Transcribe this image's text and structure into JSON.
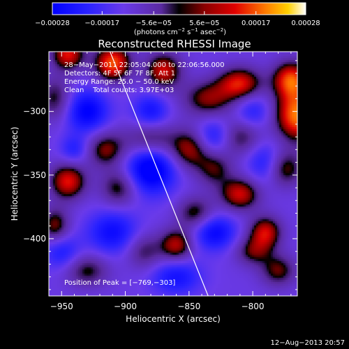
{
  "chart_data": {
    "type": "heatmap",
    "title": "Reconstructed RHESSI Image",
    "xlabel": "Heliocentric X (arcsec)",
    "ylabel": "Heliocentric Y (arcsec)",
    "xlim": [
      -960,
      -765
    ],
    "ylim": [
      -445,
      -253
    ],
    "x_ticks": [
      -950,
      -900,
      -850,
      -800
    ],
    "x_tick_labels": [
      "−950",
      "−900",
      "−850",
      "−800"
    ],
    "y_ticks": [
      -300,
      -350,
      -400
    ],
    "y_tick_labels": [
      "−300",
      "−350",
      "−400"
    ],
    "colorbar": {
      "range": [
        -0.00028,
        0.00028
      ],
      "tick_values": [
        -0.00028,
        -0.00017,
        -5.6e-05,
        5.6e-05,
        0.00017,
        0.00028
      ],
      "tick_labels": [
        "−0.00028",
        "−0.00017",
        "−5.6e−05",
        "5.6e−05",
        "0.00017",
        "0.00028"
      ],
      "label_base": "(photons cm",
      "label_exp1": "−2",
      "label_mid": " s",
      "label_exp2": "−1",
      "label_mid2": " asec",
      "label_exp3": "−2",
      "label_end": ")"
    },
    "annotations": [
      "28−May−2011 22:05:04.000 to 22:06:56.000",
      "Detectors: 4F 5F 6F 7F 8F, Att 1",
      "Energy Range: 25.0 − 50.0 keV",
      "Clean    Total counts: 3.97E+03"
    ],
    "peak_label": "Position of Peak = [−769,−303]",
    "limb_line": [
      [
        -912,
        -253
      ],
      [
        -835,
        -445
      ]
    ],
    "blobs": [
      [
        -765,
        -303,
        1.0,
        12,
        14
      ],
      [
        -770,
        -275,
        0.85,
        10,
        10
      ],
      [
        -775,
        -345,
        0.55,
        10,
        10
      ],
      [
        -790,
        -395,
        0.7,
        9,
        9
      ],
      [
        -780,
        -425,
        0.5,
        10,
        9
      ],
      [
        -810,
        -278,
        0.75,
        12,
        9
      ],
      [
        -835,
        -290,
        0.55,
        14,
        10
      ],
      [
        -810,
        -320,
        0.45,
        12,
        10
      ],
      [
        -850,
        -330,
        0.6,
        11,
        11
      ],
      [
        -880,
        -322,
        0.5,
        14,
        10
      ],
      [
        -915,
        -330,
        0.55,
        11,
        10
      ],
      [
        -945,
        -255,
        0.75,
        9,
        9
      ],
      [
        -910,
        -262,
        0.9,
        10,
        10
      ],
      [
        -870,
        -268,
        0.7,
        10,
        10
      ],
      [
        -955,
        -290,
        0.45,
        9,
        12
      ],
      [
        -945,
        -355,
        0.75,
        10,
        10
      ],
      [
        -905,
        -360,
        0.5,
        10,
        10
      ],
      [
        -955,
        -390,
        0.55,
        8,
        10
      ],
      [
        -930,
        -425,
        0.45,
        12,
        9
      ],
      [
        -830,
        -345,
        0.45,
        10,
        10
      ],
      [
        -810,
        -365,
        0.7,
        11,
        9
      ],
      [
        -845,
        -380,
        0.5,
        10,
        9
      ],
      [
        -860,
        -405,
        0.65,
        9,
        9
      ],
      [
        -885,
        -410,
        0.4,
        10,
        10
      ],
      [
        -800,
        -410,
        0.45,
        10,
        8
      ],
      [
        -930,
        -300,
        -0.6,
        12,
        12
      ],
      [
        -880,
        -345,
        -0.75,
        14,
        14
      ],
      [
        -910,
        -395,
        -0.5,
        14,
        12
      ],
      [
        -860,
        -430,
        -0.45,
        14,
        10
      ],
      [
        -830,
        -395,
        -0.55,
        12,
        10
      ],
      [
        -830,
        -320,
        -0.45,
        10,
        10
      ],
      [
        -790,
        -340,
        -0.4,
        10,
        12
      ],
      [
        -880,
        -300,
        -0.45,
        10,
        10
      ],
      [
        -950,
        -410,
        -0.4,
        10,
        10
      ],
      [
        -800,
        -300,
        -0.35,
        10,
        10
      ],
      [
        -940,
        -330,
        -0.35,
        8,
        8
      ]
    ]
  },
  "footer": {
    "timestamp": "12−Aug−2013 20:57"
  }
}
